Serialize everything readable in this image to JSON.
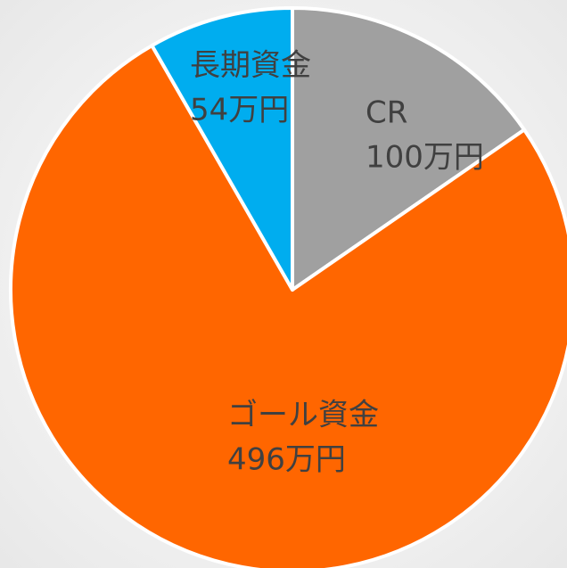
{
  "chart_data": {
    "type": "pie",
    "categories": [
      "CR",
      "ゴール資金",
      "長期資金"
    ],
    "values": [
      100,
      496,
      54
    ],
    "value_labels": [
      "100万円",
      "496万円",
      "54万円"
    ],
    "colors": [
      "#a0a0a0",
      "#ff6600",
      "#00adef"
    ]
  }
}
